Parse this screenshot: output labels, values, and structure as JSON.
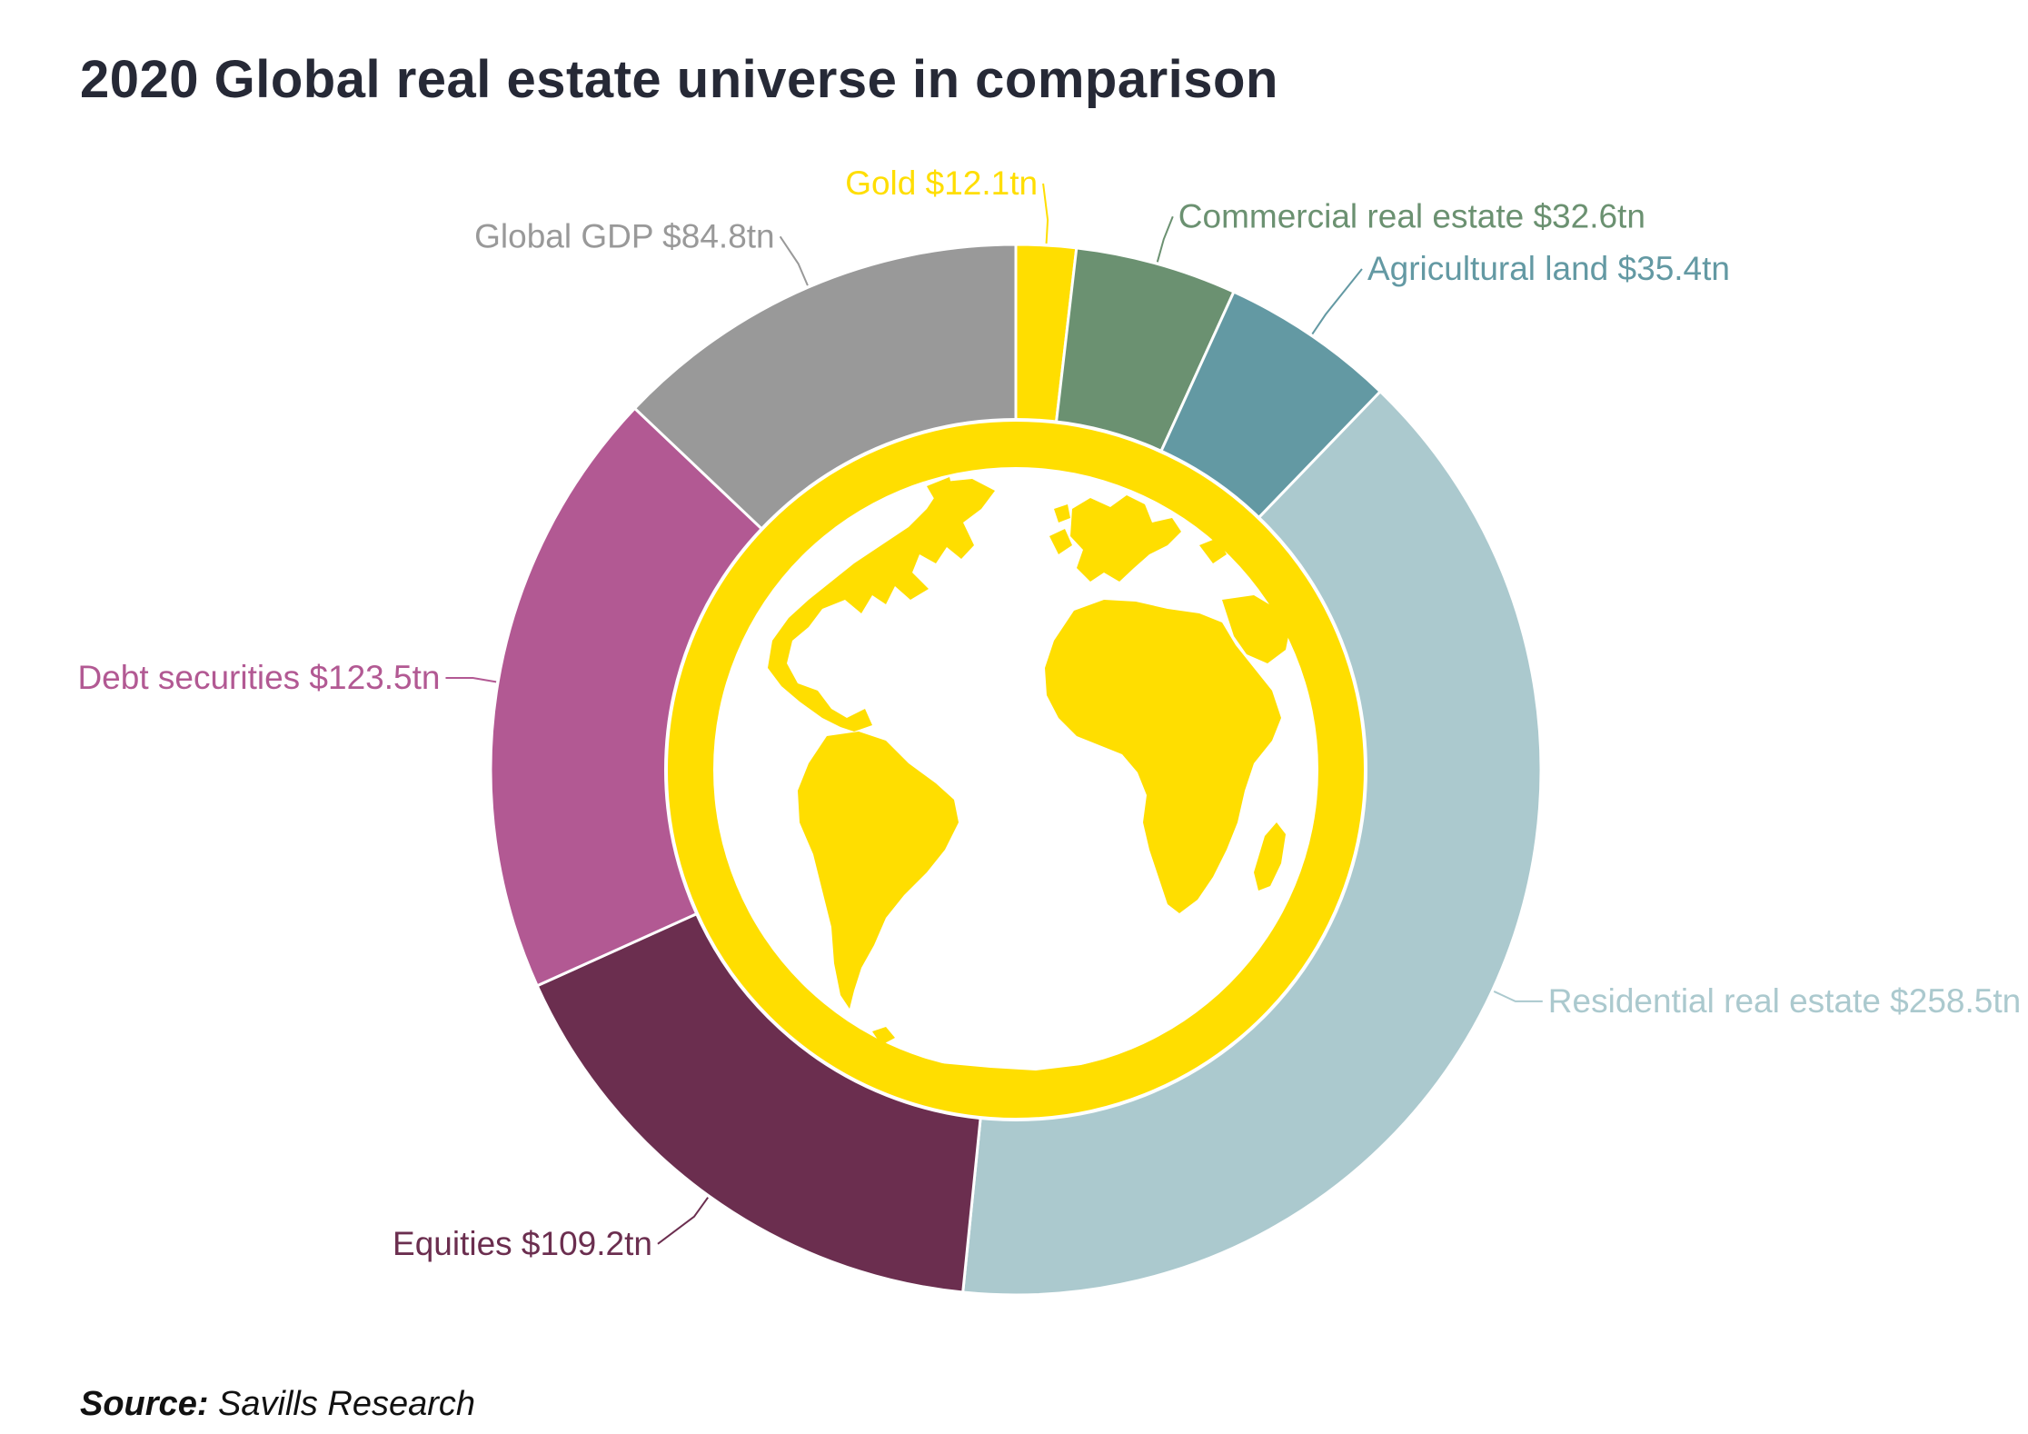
{
  "title": "2020 Global real estate universe in comparison",
  "source": {
    "label": "Source:",
    "text": " Savills Research"
  },
  "colors": {
    "ring": "#ffde00",
    "background": "#ffffff",
    "title": "#262936"
  },
  "chart_data": {
    "type": "pie",
    "variant": "donut",
    "title": "2020 Global real estate universe in comparison",
    "unit": "$tn",
    "center_icon": "globe-icon",
    "series": [
      {
        "name": "Gold $12.1tn",
        "value": 12.1,
        "color": "#ffde00"
      },
      {
        "name": "Commercial real estate $32.6tn",
        "value": 32.6,
        "color": "#6b9171"
      },
      {
        "name": "Agricultural land $35.4tn",
        "value": 35.4,
        "color": "#6399a3"
      },
      {
        "name": "Residential real estate $258.5tn",
        "value": 258.5,
        "color": "#abc9ce"
      },
      {
        "name": "Equities $109.2tn",
        "value": 109.2,
        "color": "#6b2e4f"
      },
      {
        "name": "Debt securities $123.5tn",
        "value": 123.5,
        "color": "#b25993"
      },
      {
        "name": "Global GDP $84.8tn",
        "value": 84.8,
        "color": "#999999"
      }
    ]
  }
}
